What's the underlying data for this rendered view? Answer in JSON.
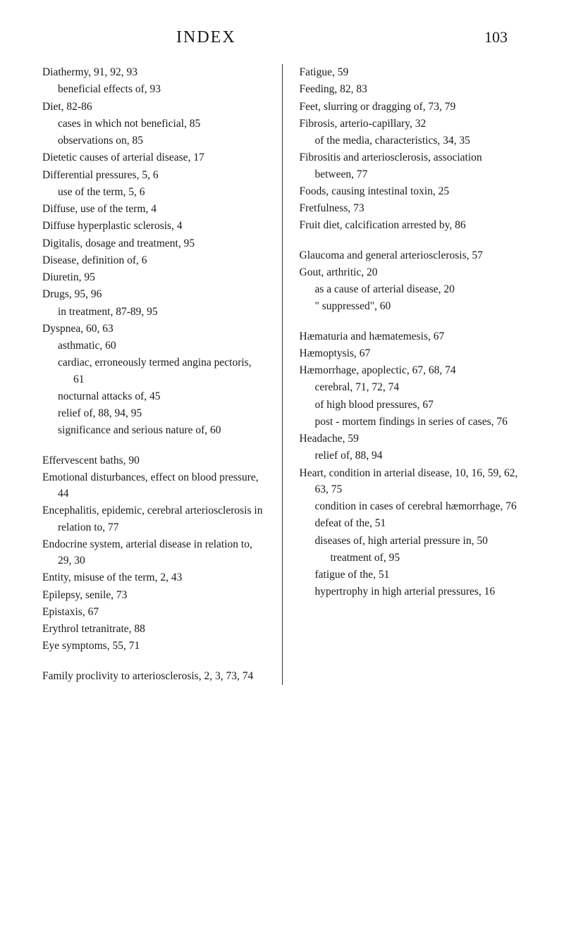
{
  "header": {
    "title": "INDEX",
    "page_number": "103"
  },
  "typography": {
    "font_family": "Times New Roman",
    "body_fontsize": 15.5,
    "header_fontsize": 24,
    "page_number_fontsize": 22,
    "line_height": 1.5
  },
  "colors": {
    "background": "#ffffff",
    "text": "#1a1a1a",
    "divider": "#333333"
  },
  "left_column": [
    {
      "level": 0,
      "text": "Diathermy, 91, 92, 93"
    },
    {
      "level": 1,
      "text": "beneficial effects of, 93"
    },
    {
      "level": 0,
      "text": "Diet, 82-86"
    },
    {
      "level": 1,
      "text": "cases in which not beneficial, 85"
    },
    {
      "level": 1,
      "text": "observations on, 85"
    },
    {
      "level": 0,
      "text": "Dietetic causes of arterial disease, 17"
    },
    {
      "level": 0,
      "text": "Differential pressures, 5, 6"
    },
    {
      "level": 1,
      "text": "use of the term, 5, 6"
    },
    {
      "level": 0,
      "text": "Diffuse, use of the term, 4"
    },
    {
      "level": 0,
      "text": "Diffuse hyperplastic sclerosis, 4"
    },
    {
      "level": 0,
      "text": "Digitalis, dosage and treatment, 95"
    },
    {
      "level": 0,
      "text": "Disease, definition of, 6"
    },
    {
      "level": 0,
      "text": "Diuretin, 95"
    },
    {
      "level": 0,
      "text": "Drugs, 95, 96"
    },
    {
      "level": 1,
      "text": "in treatment, 87-89, 95"
    },
    {
      "level": 0,
      "text": "Dyspnea, 60, 63"
    },
    {
      "level": 1,
      "text": "asthmatic, 60"
    },
    {
      "level": 1,
      "text": "cardiac, erroneously termed angina pectoris, 61"
    },
    {
      "level": 1,
      "text": "nocturnal attacks of, 45"
    },
    {
      "level": 1,
      "text": "relief of, 88, 94, 95"
    },
    {
      "level": 1,
      "text": "significance and serious nature of, 60"
    },
    {
      "gap": true
    },
    {
      "level": 0,
      "text": "Effervescent baths, 90"
    },
    {
      "level": 0,
      "text": "Emotional disturbances, effect on blood pressure, 44"
    },
    {
      "level": 0,
      "text": "Encephalitis, epidemic, cerebral arteriosclerosis in relation to, 77"
    },
    {
      "level": 0,
      "text": "Endocrine system, arterial disease in relation to, 29, 30"
    },
    {
      "level": 0,
      "text": "Entity, misuse of the term, 2, 43"
    },
    {
      "level": 0,
      "text": "Epilepsy, senile, 73"
    },
    {
      "level": 0,
      "text": "Epistaxis, 67"
    },
    {
      "level": 0,
      "text": "Erythrol tetranitrate, 88"
    },
    {
      "level": 0,
      "text": "Eye symptoms, 55, 71"
    },
    {
      "gap": true
    },
    {
      "level": 0,
      "text": "Family proclivity to arteriosclerosis, 2, 3, 73, 74"
    }
  ],
  "right_column": [
    {
      "level": 0,
      "text": "Fatigue, 59"
    },
    {
      "level": 0,
      "text": "Feeding, 82, 83"
    },
    {
      "level": 0,
      "text": "Feet, slurring or dragging of, 73, 79"
    },
    {
      "level": 0,
      "text": "Fibrosis, arterio-capillary, 32"
    },
    {
      "level": 1,
      "text": "of the media, characteristics, 34, 35"
    },
    {
      "level": 0,
      "text": "Fibrositis and arteriosclerosis, association between, 77"
    },
    {
      "level": 0,
      "text": "Foods, causing intestinal toxin, 25"
    },
    {
      "level": 0,
      "text": "Fretfulness, 73"
    },
    {
      "level": 0,
      "text": "Fruit diet, calcification arrested by, 86"
    },
    {
      "gap": true
    },
    {
      "level": 0,
      "text": "Glaucoma and general arteriosclerosis, 57"
    },
    {
      "level": 0,
      "text": "Gout, arthritic, 20"
    },
    {
      "level": 1,
      "text": "as a cause of arterial disease, 20"
    },
    {
      "level": 1,
      "text": "\" suppressed\", 60"
    },
    {
      "gap": true
    },
    {
      "level": 0,
      "text": "Hæmaturia and hæmatemesis, 67"
    },
    {
      "level": 0,
      "text": "Hæmoptysis, 67"
    },
    {
      "level": 0,
      "text": "Hæmorrhage, apoplectic, 67, 68, 74"
    },
    {
      "level": 1,
      "text": "cerebral, 71, 72, 74"
    },
    {
      "level": 1,
      "text": "of high blood pressures, 67"
    },
    {
      "level": 1,
      "text": "post - mortem findings in series of cases, 76"
    },
    {
      "level": 0,
      "text": "Headache, 59"
    },
    {
      "level": 1,
      "text": "relief of, 88, 94"
    },
    {
      "level": 0,
      "text": "Heart, condition in arterial disease, 10, 16, 59, 62, 63, 75"
    },
    {
      "level": 1,
      "text": "condition in cases of cerebral hæmorrhage, 76"
    },
    {
      "level": 1,
      "text": "defeat of the, 51"
    },
    {
      "level": 1,
      "text": "diseases of, high arterial pressure in, 50"
    },
    {
      "level": 2,
      "text": "treatment of, 95"
    },
    {
      "level": 1,
      "text": "fatigue of the, 51"
    },
    {
      "level": 1,
      "text": "hypertrophy in high arterial pressures, 16"
    }
  ]
}
